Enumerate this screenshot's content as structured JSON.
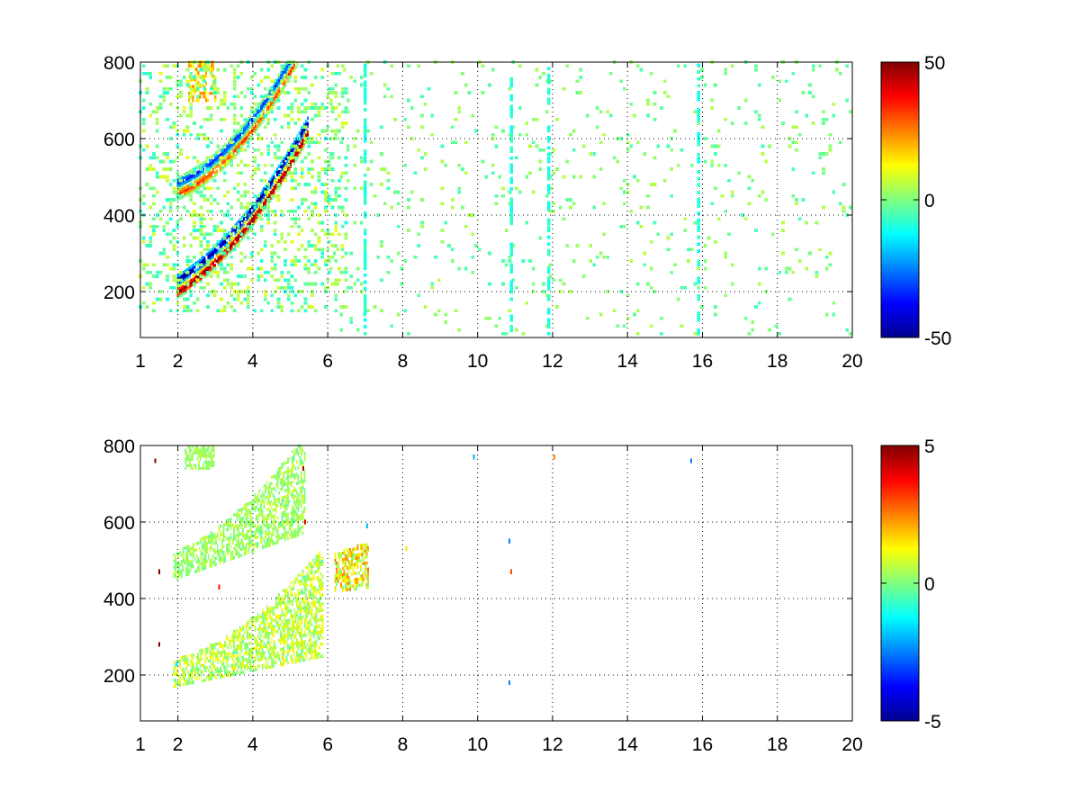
{
  "figure": {
    "background": "#ffffff",
    "colormap": "jet"
  },
  "chart_data": [
    {
      "type": "heatmap",
      "title": "",
      "xlabel": "",
      "ylabel": "",
      "xlim": [
        1,
        20
      ],
      "ylim": [
        80,
        800
      ],
      "grid": true,
      "x_ticks": [
        1,
        2,
        4,
        6,
        8,
        10,
        12,
        14,
        16,
        18,
        20
      ],
      "y_ticks": [
        200,
        400,
        600,
        800
      ],
      "colorbar": {
        "min": -50,
        "max": 50,
        "ticks": [
          50,
          0,
          -50
        ]
      },
      "features": [
        {
          "kind": "band",
          "x_range": [
            2.0,
            5.5
          ],
          "y_start": 215,
          "slope": 60,
          "curve": 17,
          "width": 30,
          "peak": 48,
          "flip": true
        },
        {
          "kind": "band",
          "x_range": [
            2.0,
            5.4
          ],
          "y_start": 470,
          "slope": 40,
          "curve": 22,
          "width": 28,
          "peak": 32,
          "flip": true
        },
        {
          "kind": "blob",
          "x_range": [
            2.3,
            3.0
          ],
          "y_range": [
            700,
            800
          ],
          "value": 18
        },
        {
          "kind": "scatter",
          "x_range": [
            1.0,
            6.5
          ],
          "y_range": [
            150,
            800
          ],
          "amplitude": 10,
          "density": 0.25
        },
        {
          "kind": "scatter",
          "x_range": [
            6.0,
            20.0
          ],
          "y_range": [
            90,
            800
          ],
          "amplitude": 6,
          "density": 0.06
        },
        {
          "kind": "stripes",
          "x": [
            7.0,
            10.9,
            11.9,
            15.9
          ],
          "value": -9,
          "density": 0.6
        }
      ]
    },
    {
      "type": "heatmap",
      "title": "",
      "xlabel": "",
      "ylabel": "",
      "xlim": [
        1,
        20
      ],
      "ylim": [
        80,
        800
      ],
      "grid": true,
      "x_ticks": [
        1,
        2,
        4,
        6,
        8,
        10,
        12,
        14,
        16,
        18,
        20
      ],
      "y_ticks": [
        200,
        400,
        600,
        800
      ],
      "colorbar": {
        "min": -5,
        "max": 5,
        "ticks": [
          5,
          0,
          -5
        ]
      },
      "features": [
        {
          "kind": "region",
          "x_range": [
            1.9,
            5.9
          ],
          "lower_start": 170,
          "lower_slope": 20,
          "upper_start": 240,
          "upper_slope": 30,
          "upper_curve": 11,
          "value": 0.6,
          "amplitude": 0.9
        },
        {
          "kind": "region",
          "x_range": [
            1.9,
            5.4
          ],
          "lower_start": 450,
          "lower_slope": 35,
          "upper_start": 520,
          "upper_slope": 40,
          "upper_curve": 14,
          "value": 0.3,
          "amplitude": 0.6
        },
        {
          "kind": "region",
          "x_range": [
            2.2,
            3.0
          ],
          "lower_start": 740,
          "lower_slope": 0,
          "upper_start": 800,
          "upper_slope": 0,
          "upper_curve": 0,
          "value": 0.3,
          "amplitude": 0.4
        },
        {
          "kind": "region",
          "x_range": [
            6.2,
            7.1
          ],
          "lower_start": 420,
          "lower_slope": 10,
          "upper_start": 520,
          "upper_slope": 30,
          "upper_curve": 0,
          "value": 1.2,
          "amplitude": 1.4
        },
        {
          "kind": "points",
          "values": [
            [
              1.4,
              760,
              5
            ],
            [
              1.5,
              280,
              5
            ],
            [
              1.5,
              470,
              5
            ],
            [
              1.97,
              230,
              -1.5
            ],
            [
              3.1,
              430,
              3.5
            ],
            [
              5.35,
              740,
              4.5
            ],
            [
              5.4,
              600,
              4
            ],
            [
              7.05,
              590,
              -1.8
            ],
            [
              8.1,
              530,
              1.5
            ],
            [
              9.9,
              770,
              -2
            ],
            [
              10.85,
              550,
              -2.5
            ],
            [
              10.9,
              470,
              3
            ],
            [
              10.85,
              180,
              -2.5
            ],
            [
              12.05,
              770,
              2.5
            ],
            [
              15.7,
              760,
              -2.5
            ]
          ]
        }
      ]
    }
  ]
}
